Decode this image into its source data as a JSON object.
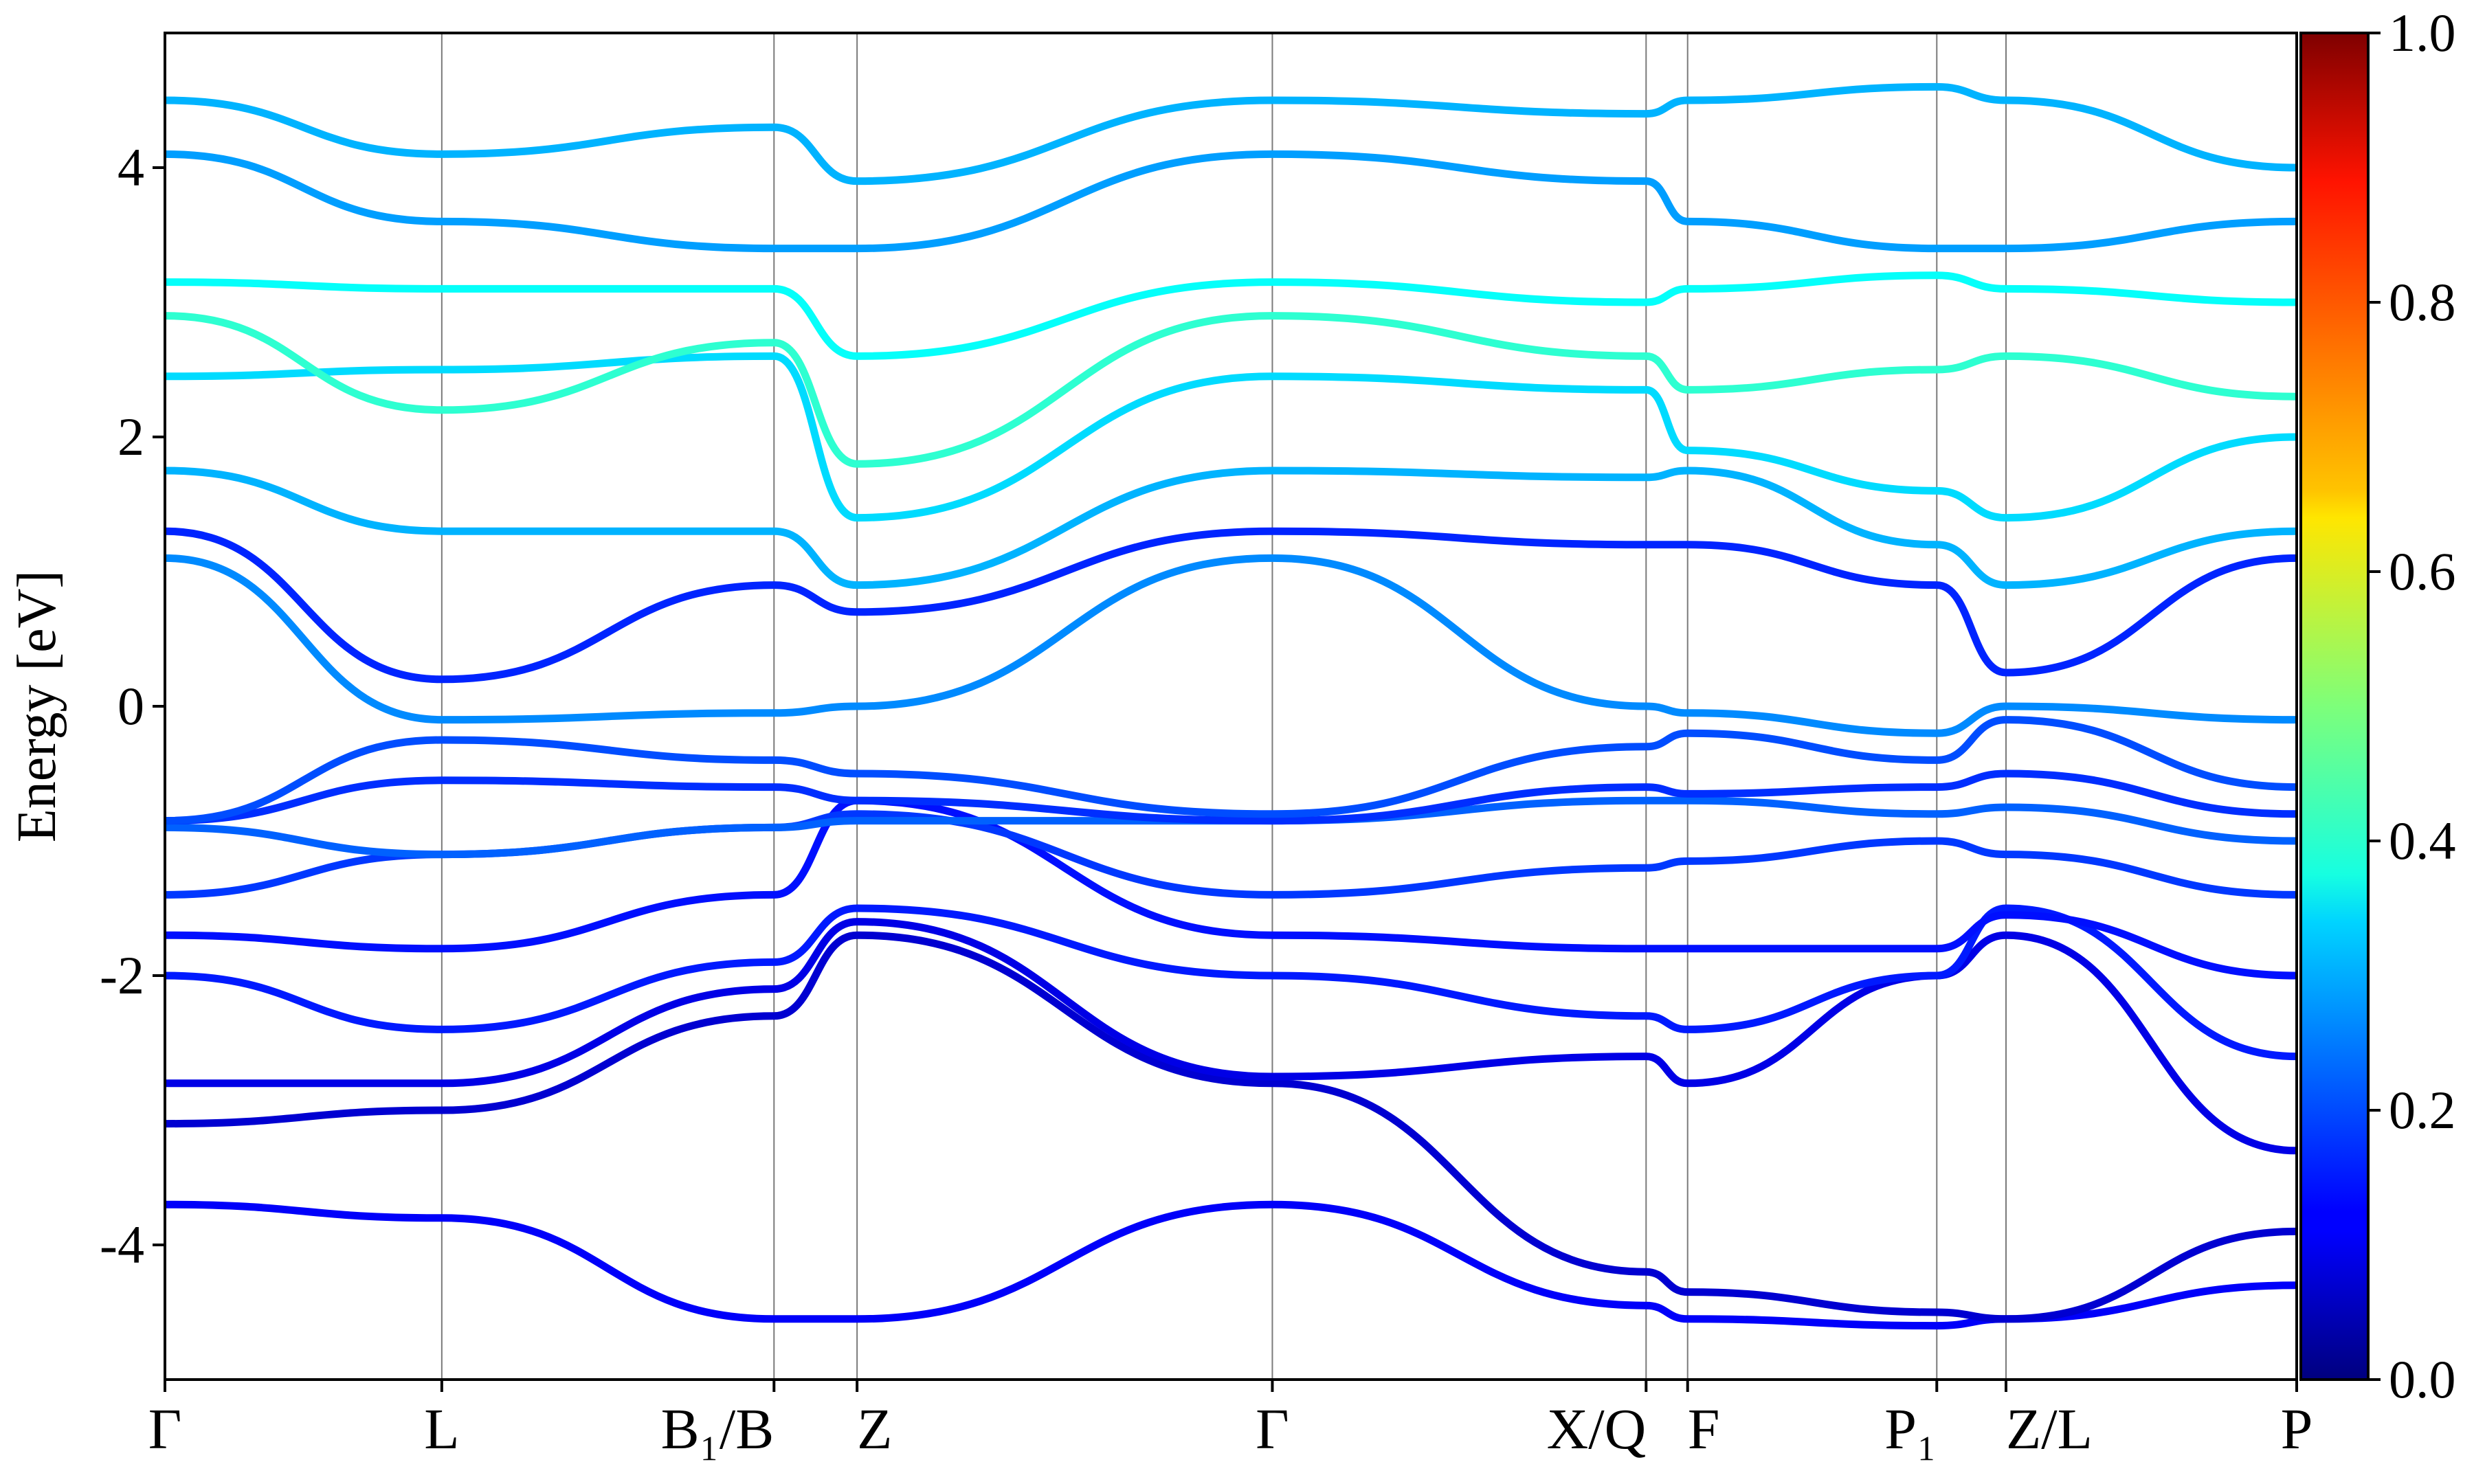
{
  "chart_data": {
    "type": "line",
    "title": "",
    "ylabel": "Energy [eV]",
    "xlabel": "",
    "ylim": [
      -5,
      5
    ],
    "y_ticks": [
      -4,
      -2,
      0,
      2,
      4
    ],
    "y_tick_labels": [
      "-4",
      "-2",
      "0",
      "2",
      "4"
    ],
    "k_ticks": [
      {
        "label": "Γ"
      },
      {
        "label": "L"
      },
      {
        "label": "B₁/B"
      },
      {
        "label": "Z"
      },
      {
        "label": "Γ"
      },
      {
        "label": "X/Q"
      },
      {
        "label": "F"
      },
      {
        "label": "P₁"
      },
      {
        "label": "Z/L"
      },
      {
        "label": "P"
      }
    ],
    "k_positions": [
      0.0,
      1.0,
      2.2,
      2.5,
      4.0,
      5.35,
      5.5,
      6.4,
      6.65,
      7.7
    ],
    "colorbar": {
      "colormap": "jet",
      "range": [
        0.0,
        1.0
      ],
      "ticks": [
        "0.0",
        "0.2",
        "0.4",
        "0.6",
        "0.8",
        "1.0"
      ]
    },
    "grid": "vertical lines at high-symmetry k-points",
    "series": [
      {
        "color_value": 0.12,
        "energies": [
          -3.7,
          -3.8,
          -4.55,
          -4.55,
          -3.7,
          -4.45,
          -4.55,
          -4.6,
          -4.55,
          -4.3
        ]
      },
      {
        "color_value": 0.08,
        "energies": [
          -3.1,
          -3.0,
          -2.3,
          -1.7,
          -2.8,
          -4.2,
          -4.35,
          -4.5,
          -4.55,
          -3.9
        ]
      },
      {
        "color_value": 0.1,
        "energies": [
          -2.8,
          -2.8,
          -2.1,
          -1.6,
          -2.75,
          -2.6,
          -2.8,
          -2.0,
          -1.7,
          -3.3
        ]
      },
      {
        "color_value": 0.15,
        "energies": [
          -2.0,
          -2.4,
          -1.9,
          -1.5,
          -2.0,
          -2.3,
          -2.4,
          -2.0,
          -1.5,
          -2.6
        ]
      },
      {
        "color_value": 0.14,
        "energies": [
          -1.7,
          -1.8,
          -1.4,
          -0.7,
          -1.7,
          -1.8,
          -1.8,
          -1.8,
          -1.55,
          -2.0
        ]
      },
      {
        "color_value": 0.18,
        "energies": [
          -1.4,
          -1.1,
          -0.9,
          -0.8,
          -1.4,
          -1.2,
          -1.15,
          -1.0,
          -1.1,
          -1.4
        ]
      },
      {
        "color_value": 0.22,
        "energies": [
          -0.9,
          -1.1,
          -0.9,
          -0.85,
          -0.85,
          -0.7,
          -0.7,
          -0.8,
          -0.75,
          -1.0
        ]
      },
      {
        "color_value": 0.17,
        "energies": [
          -0.85,
          -0.55,
          -0.6,
          -0.7,
          -0.85,
          -0.6,
          -0.65,
          -0.6,
          -0.5,
          -0.8
        ]
      },
      {
        "color_value": 0.2,
        "energies": [
          -0.85,
          -0.25,
          -0.4,
          -0.5,
          -0.8,
          -0.3,
          -0.2,
          -0.4,
          -0.1,
          -0.6
        ]
      },
      {
        "color_value": 0.26,
        "energies": [
          1.1,
          -0.1,
          -0.05,
          0.0,
          1.1,
          0.0,
          -0.05,
          -0.2,
          0.0,
          -0.1
        ]
      },
      {
        "color_value": 0.16,
        "energies": [
          1.3,
          0.2,
          0.9,
          0.7,
          1.3,
          1.2,
          1.2,
          0.9,
          0.25,
          1.1
        ]
      },
      {
        "color_value": 0.3,
        "energies": [
          1.75,
          1.3,
          1.3,
          0.9,
          1.75,
          1.7,
          1.75,
          1.2,
          0.9,
          1.3
        ]
      },
      {
        "color_value": 0.34,
        "energies": [
          2.45,
          2.5,
          2.6,
          1.4,
          2.45,
          2.35,
          1.9,
          1.6,
          1.4,
          2.0
        ]
      },
      {
        "color_value": 0.42,
        "energies": [
          2.9,
          2.2,
          2.7,
          1.8,
          2.9,
          2.6,
          2.35,
          2.5,
          2.6,
          2.3
        ]
      },
      {
        "color_value": 0.38,
        "energies": [
          3.15,
          3.1,
          3.1,
          2.6,
          3.15,
          3.0,
          3.1,
          3.2,
          3.1,
          3.0
        ]
      },
      {
        "color_value": 0.28,
        "energies": [
          4.1,
          3.6,
          3.4,
          3.4,
          4.1,
          3.9,
          3.6,
          3.4,
          3.4,
          3.6
        ]
      },
      {
        "color_value": 0.3,
        "energies": [
          4.5,
          4.1,
          4.3,
          3.9,
          4.5,
          4.4,
          4.5,
          4.6,
          4.5,
          4.0
        ]
      }
    ]
  }
}
